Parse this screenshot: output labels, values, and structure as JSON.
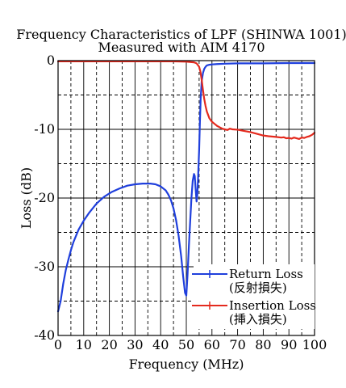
{
  "chart_data": {
    "type": "line",
    "title": "Frequency Characteristics of LPF (SHINWA 1001)",
    "subtitle": "Measured with AIM 4170",
    "xlabel": "Frequency (MHz)",
    "ylabel": "Loss (dB)",
    "xlim": [
      0,
      100
    ],
    "ylim": [
      -40,
      0
    ],
    "xticks": [
      0,
      10,
      20,
      30,
      40,
      50,
      60,
      70,
      80,
      90,
      100
    ],
    "xtick_labels": [
      "0",
      "10",
      "20",
      "30",
      "40",
      "50",
      "60",
      "70",
      "80",
      "90",
      "100"
    ],
    "yticks": [
      0,
      -10,
      -20,
      -30,
      -40
    ],
    "ytick_labels": [
      "0",
      "-10",
      "-20",
      "-30",
      "-40"
    ],
    "major_grid": "solid",
    "minor_grid": "dashed",
    "legend": "bottom-right",
    "series": [
      {
        "name": "Return Loss",
        "name_ja": "(反射損失)",
        "color": "#1f3fdc",
        "x": [
          0,
          1,
          2,
          3,
          4,
          5,
          6,
          8,
          10,
          12,
          15,
          18,
          21,
          24,
          27,
          30,
          33,
          36,
          38,
          40,
          42,
          43,
          44,
          45,
          46,
          47,
          48,
          48.8,
          49.5,
          50,
          50.5,
          51,
          51.5,
          52,
          52.5,
          53,
          53.3,
          53.6,
          54,
          54.3,
          54.6,
          55,
          55.3,
          55.6,
          56,
          56.5,
          57,
          57.5,
          58,
          59,
          60,
          62,
          65,
          70,
          80,
          90,
          100
        ],
        "y": [
          -36.5,
          -35,
          -32.5,
          -30.5,
          -29,
          -27.6,
          -26.4,
          -24.6,
          -23.3,
          -22.2,
          -20.8,
          -19.8,
          -19.1,
          -18.6,
          -18.2,
          -18.0,
          -17.9,
          -17.9,
          -18.0,
          -18.3,
          -18.9,
          -19.5,
          -20.3,
          -21.5,
          -23.2,
          -25.5,
          -28.5,
          -31.5,
          -33.8,
          -34.2,
          -31,
          -27,
          -23.5,
          -20,
          -17.5,
          -16.5,
          -16.8,
          -18.5,
          -20.5,
          -19.5,
          -17,
          -13,
          -9,
          -5.5,
          -3.0,
          -1.8,
          -1.2,
          -0.9,
          -0.7,
          -0.6,
          -0.55,
          -0.5,
          -0.45,
          -0.4,
          -0.4,
          -0.35,
          -0.35
        ]
      },
      {
        "name": "Insertion Loss",
        "name_ja": "(挿入損失)",
        "color": "#e42a1e",
        "x": [
          0,
          10,
          20,
          30,
          40,
          45,
          50,
          53,
          54,
          55,
          55.5,
          56,
          56.5,
          57,
          57.5,
          58,
          58.5,
          59,
          60,
          61,
          62,
          63,
          64,
          65,
          66,
          67,
          68,
          70,
          72,
          75,
          78,
          80,
          82,
          85,
          87,
          88,
          89,
          90,
          91,
          92,
          93,
          94,
          95,
          96,
          97,
          98,
          99,
          100
        ],
        "y": [
          -0.1,
          -0.1,
          -0.1,
          -0.1,
          -0.1,
          -0.1,
          -0.15,
          -0.25,
          -0.4,
          -0.9,
          -1.6,
          -2.8,
          -4.3,
          -5.6,
          -6.6,
          -7.4,
          -7.9,
          -8.4,
          -8.9,
          -9.2,
          -9.5,
          -9.7,
          -9.9,
          -10.0,
          -10.1,
          -9.9,
          -10.0,
          -10.05,
          -10.2,
          -10.4,
          -10.7,
          -10.9,
          -11.0,
          -11.1,
          -11.2,
          -11.15,
          -11.3,
          -11.25,
          -11.35,
          -11.2,
          -11.3,
          -11.4,
          -11.2,
          -11.25,
          -11.1,
          -11.0,
          -10.8,
          -10.5
        ]
      }
    ]
  }
}
